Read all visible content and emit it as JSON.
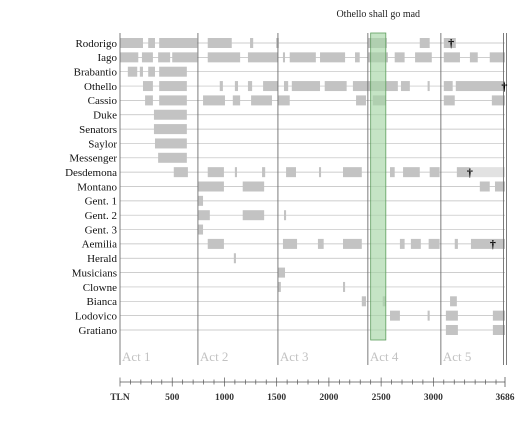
{
  "chart_data": {
    "type": "bar",
    "xlabel": "TLN",
    "xlim": [
      0,
      3686
    ],
    "minor_tick_step": 100,
    "x_ticks": [
      {
        "value": 500,
        "label": "500"
      },
      {
        "value": 1000,
        "label": "1000"
      },
      {
        "value": 1500,
        "label": "1500"
      },
      {
        "value": 2000,
        "label": "2000"
      },
      {
        "value": 2500,
        "label": "2500"
      },
      {
        "value": 3000,
        "label": "3000"
      },
      {
        "value": 3686,
        "label": "3686"
      }
    ],
    "grid": true,
    "acts": [
      {
        "label": "Act 1",
        "start": 0,
        "end": 746
      },
      {
        "label": "Act 2",
        "start": 746,
        "end": 1512
      },
      {
        "label": "Act 3",
        "start": 1512,
        "end": 2373
      },
      {
        "label": "Act 4",
        "start": 2373,
        "end": 3072
      },
      {
        "label": "Act 5",
        "start": 3072,
        "end": 3686
      }
    ],
    "annotation": {
      "label": "Othello shall go mad",
      "start": 2400,
      "end": 2545
    },
    "death_marker": "†",
    "rows": [
      {
        "name": "Rodorigo",
        "segments": [
          [
            0,
            220
          ],
          [
            270,
            335
          ],
          [
            375,
            740
          ],
          [
            840,
            1070
          ],
          [
            1245,
            1275
          ],
          [
            1495,
            1520
          ],
          [
            2375,
            2555
          ],
          [
            2870,
            2965
          ],
          [
            3100,
            3215
          ]
        ],
        "death": 3170
      },
      {
        "name": "Iago",
        "segments": [
          [
            0,
            175
          ],
          [
            210,
            315
          ],
          [
            365,
            480
          ],
          [
            500,
            740
          ],
          [
            840,
            1150
          ],
          [
            1225,
            1510
          ],
          [
            1560,
            1580
          ],
          [
            1625,
            1875
          ],
          [
            1915,
            2155
          ],
          [
            2250,
            2295
          ],
          [
            2375,
            2565
          ],
          [
            2630,
            2725
          ],
          [
            2825,
            2985
          ],
          [
            3100,
            3255
          ],
          [
            3350,
            3425
          ],
          [
            3540,
            3686
          ]
        ]
      },
      {
        "name": "Brabantio",
        "segments": [
          [
            75,
            165
          ],
          [
            190,
            220
          ],
          [
            270,
            335
          ],
          [
            375,
            640
          ]
        ]
      },
      {
        "name": "Othello",
        "segments": [
          [
            220,
            315
          ],
          [
            375,
            640
          ],
          [
            955,
            985
          ],
          [
            1100,
            1130
          ],
          [
            1225,
            1265
          ],
          [
            1370,
            1510
          ],
          [
            1570,
            1610
          ],
          [
            1645,
            1915
          ],
          [
            1960,
            2170
          ],
          [
            2230,
            2660
          ],
          [
            2690,
            2775
          ],
          [
            2945,
            2965
          ],
          [
            3100,
            3185
          ],
          [
            3215,
            3686
          ]
        ],
        "death": 3680
      },
      {
        "name": "Cassio",
        "segments": [
          [
            240,
            315
          ],
          [
            375,
            640
          ],
          [
            795,
            1005
          ],
          [
            1080,
            1150
          ],
          [
            1255,
            1455
          ],
          [
            1510,
            1625
          ],
          [
            2260,
            2355
          ],
          [
            2420,
            2545
          ],
          [
            3100,
            3205
          ],
          [
            3560,
            3686
          ]
        ]
      },
      {
        "name": "Duke",
        "segments": [
          [
            325,
            640
          ]
        ]
      },
      {
        "name": "Senators",
        "segments": [
          [
            325,
            640
          ]
        ]
      },
      {
        "name": "Saylor",
        "segments": [
          [
            335,
            640
          ]
        ]
      },
      {
        "name": "Messenger",
        "segments": [
          [
            365,
            640
          ]
        ]
      },
      {
        "name": "Desdemona",
        "segments": [
          [
            515,
            650
          ],
          [
            840,
            995
          ],
          [
            1100,
            1120
          ],
          [
            1360,
            1390
          ],
          [
            1590,
            1685
          ],
          [
            1905,
            1925
          ],
          [
            2135,
            2315
          ],
          [
            2585,
            2630
          ],
          [
            2710,
            2870
          ],
          [
            2965,
            3060
          ],
          [
            3225,
            3350
          ]
        ],
        "death": 3350,
        "present_after_death": [
          [
            3350,
            3686
          ]
        ]
      },
      {
        "name": "Montano",
        "segments": [
          [
            745,
            995
          ],
          [
            1175,
            1380
          ],
          [
            3445,
            3540
          ],
          [
            3590,
            3686
          ]
        ]
      },
      {
        "name": "Gent. 1",
        "segments": [
          [
            745,
            795
          ]
        ]
      },
      {
        "name": "Gent. 2",
        "segments": [
          [
            745,
            860
          ],
          [
            1175,
            1380
          ],
          [
            1570,
            1590
          ]
        ]
      },
      {
        "name": "Gent. 3",
        "segments": [
          [
            745,
            795
          ]
        ]
      },
      {
        "name": "Aemilia",
        "segments": [
          [
            840,
            995
          ],
          [
            1560,
            1695
          ],
          [
            1895,
            1950
          ],
          [
            2135,
            2315
          ],
          [
            2680,
            2725
          ],
          [
            2785,
            2880
          ],
          [
            2955,
            3060
          ],
          [
            3205,
            3235
          ],
          [
            3360,
            3686
          ]
        ],
        "death": 3570
      },
      {
        "name": "Herald",
        "segments": [
          [
            1090,
            1110
          ]
        ]
      },
      {
        "name": "Musicians",
        "segments": [
          [
            1510,
            1580
          ]
        ]
      },
      {
        "name": "Clowne",
        "segments": [
          [
            1510,
            1540
          ],
          [
            2135,
            2155
          ]
        ]
      },
      {
        "name": "Bianca",
        "segments": [
          [
            2315,
            2355
          ],
          [
            2515,
            2545
          ],
          [
            3160,
            3225
          ]
        ]
      },
      {
        "name": "Lodovico",
        "segments": [
          [
            2585,
            2680
          ],
          [
            2945,
            2965
          ],
          [
            3120,
            3235
          ],
          [
            3570,
            3686
          ]
        ]
      },
      {
        "name": "Gratiano",
        "segments": [
          [
            3120,
            3235
          ],
          [
            3570,
            3686
          ]
        ]
      }
    ],
    "colors": {
      "bar": "#c3c3c3",
      "after_death": "#e2e2e2",
      "grid": "#bdbdbd",
      "act_line": "#6e6e6e",
      "axis": "#555555",
      "highlight_fill": "#a6d6a6",
      "highlight_stroke": "#5e9e5e"
    }
  }
}
